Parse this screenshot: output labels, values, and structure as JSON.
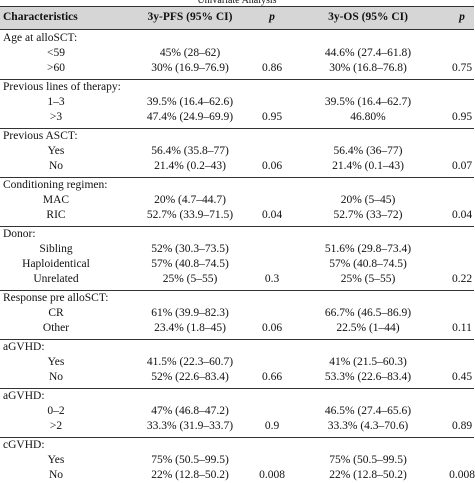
{
  "table": {
    "title": "Univariate Analysis",
    "header": [
      "Characteristics",
      "3y-PFS (95% CI)",
      "p",
      "3y-OS (95% CI)",
      "p"
    ],
    "groups": [
      {
        "label": "Age at alloSCT:",
        "rows": [
          [
            "<59",
            "45% (28–62)",
            "44.6% (27.4–61.8)"
          ],
          [
            ">60",
            "30% (16.9–76.9)",
            "30% (16.8–76.8)"
          ]
        ],
        "pfs_p": "0.86",
        "os_p": "0.75"
      },
      {
        "label": "Previous lines of therapy:",
        "rows": [
          [
            "1–3",
            "39.5% (16.4–62.6)",
            "39.5% (16.4–62.7)"
          ],
          [
            ">3",
            "47.4% (24.9–69.9)",
            "46.80%"
          ]
        ],
        "pfs_p": "0.95",
        "os_p": "0.95"
      },
      {
        "label": "Previous ASCT:",
        "rows": [
          [
            "Yes",
            "56.4% (35.8–77)",
            "56.4% (36–77)"
          ],
          [
            "No",
            "21.4% (0.2–43)",
            "21.4% (0.1–43)"
          ]
        ],
        "pfs_p": "0.06",
        "os_p": "0.07"
      },
      {
        "label": "Conditioning regimen:",
        "rows": [
          [
            "MAC",
            "20% (4.7–44.7)",
            "20% (5–45)"
          ],
          [
            "RIC",
            "52.7% (33.9–71.5)",
            "52.7% (33–72)"
          ]
        ],
        "pfs_p": "0.04",
        "os_p": "0.04"
      },
      {
        "label": "Donor:",
        "rows": [
          [
            "Sibling",
            "52% (30.3–73.5)",
            "51.6% (29.8–73.4)"
          ],
          [
            "Haploidentical",
            "57% (40.8–74.5)",
            "57% (40.8–74.5)"
          ],
          [
            "Unrelated",
            "25% (5–55)",
            "25% (5–55)"
          ]
        ],
        "pfs_p": "0.3",
        "os_p": "0.22"
      },
      {
        "label": "Response pre alloSCT:",
        "rows": [
          [
            "CR",
            "61% (39.9–82.3)",
            "66.7% (46.5–86.9)"
          ],
          [
            "Other",
            "23.4% (1.8–45)",
            "22.5% (1–44)"
          ]
        ],
        "pfs_p": "0.06",
        "os_p": "0.11"
      },
      {
        "label": "aGVHD:",
        "rows": [
          [
            "Yes",
            "41.5% (22.3–60.7)",
            "41% (21.5–60.3)"
          ],
          [
            "No",
            "52% (22.6–83.4)",
            "53.3% (22.6–83.4)"
          ]
        ],
        "pfs_p": "0.66",
        "os_p": "0.45"
      },
      {
        "label": "aGVHD:",
        "rows": [
          [
            "0–2",
            "47% (46.8–47.2)",
            "46.5% (27.4–65.6)"
          ],
          [
            ">2",
            "33.3% (31.9–33.7)",
            "33.3% (4.3–70.6)"
          ]
        ],
        "pfs_p": "0.9",
        "os_p": "0.89"
      },
      {
        "label": "cGVHD:",
        "rows": [
          [
            "Yes",
            "75% (50.5–99.5)",
            "75% (50.5–99.5)"
          ],
          [
            "No",
            "22% (12.8–50.2)",
            "22% (12.8–50.2)"
          ]
        ],
        "pfs_p": "0.008",
        "os_p": "0.008"
      }
    ]
  }
}
